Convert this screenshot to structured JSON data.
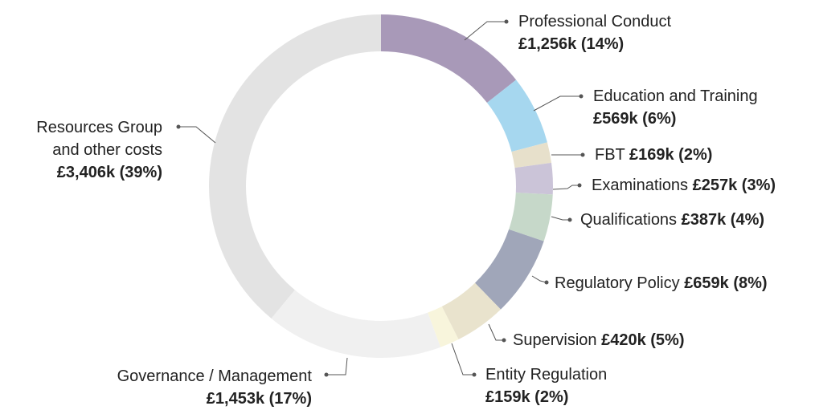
{
  "chart_data": {
    "type": "pie",
    "donut": true,
    "categories": [
      "Professional Conduct",
      "Education and Training",
      "FBT",
      "Examinations",
      "Qualifications",
      "Regulatory Policy",
      "Supervision",
      "Entity Regulation",
      "Governance / Management",
      "Resources Group and other costs"
    ],
    "values": [
      1256,
      569,
      169,
      257,
      387,
      659,
      420,
      159,
      1453,
      3406
    ],
    "value_labels": [
      "£1,256k (14%)",
      "£569k (6%)",
      "£169k (2%)",
      "£257k (3%)",
      "£387k (4%)",
      "£659k (8%)",
      "£420k (5%)",
      "£159k (2%)",
      "£1,453k (17%)",
      "£3,406k (39%)"
    ],
    "colors": [
      "#a899b8",
      "#a6d7ef",
      "#e7e0cb",
      "#cbc4d8",
      "#c6d8c9",
      "#a0a6b9",
      "#e9e3cd",
      "#f8f5dc",
      "#f0f0f0",
      "#e3e3e3"
    ]
  }
}
